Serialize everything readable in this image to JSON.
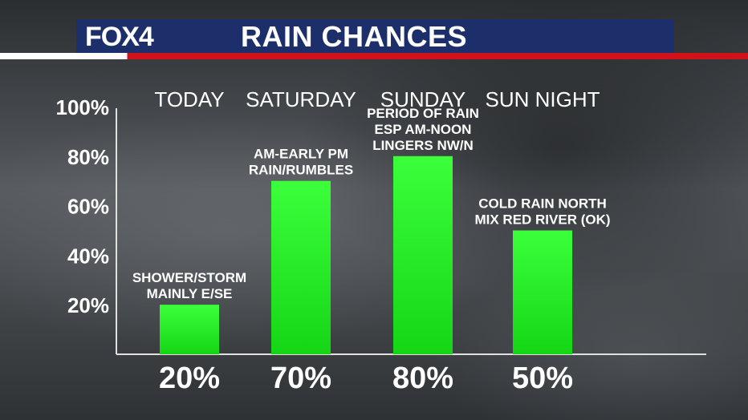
{
  "header": {
    "logo": "FOX4",
    "title": "RAIN CHANCES"
  },
  "chart_data": {
    "type": "bar",
    "title": "RAIN CHANCES",
    "categories": [
      "TODAY",
      "SATURDAY",
      "SUNDAY",
      "SUN NIGHT"
    ],
    "values": [
      20,
      70,
      80,
      50
    ],
    "value_labels": [
      "20%",
      "70%",
      "80%",
      "50%"
    ],
    "annotations": [
      [
        "SHOWER/STORM",
        "MAINLY E/SE"
      ],
      [
        "AM-EARLY PM",
        "RAIN/RUMBLES"
      ],
      [
        "PERIOD OF RAIN",
        "ESP AM-NOON",
        "LINGERS NW/N"
      ],
      [
        "COLD RAIN NORTH",
        "MIX RED RIVER (OK)"
      ]
    ],
    "yticks": [
      "20%",
      "40%",
      "60%",
      "80%",
      "100%"
    ],
    "ytick_values": [
      20,
      40,
      60,
      80,
      100
    ],
    "ylim": [
      0,
      100
    ],
    "xlabel": "",
    "ylabel": "",
    "grid": false,
    "bar_color": "#22ee22"
  }
}
